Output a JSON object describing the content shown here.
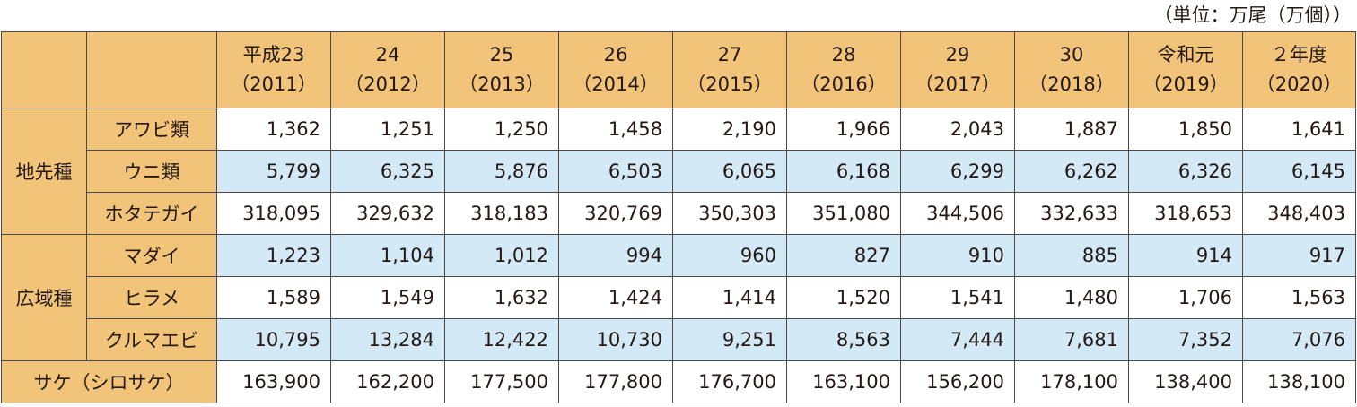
{
  "unit_note": "（単位：万尾（万個））",
  "years": [
    {
      "top": "平成23",
      "bottom": "（2011）"
    },
    {
      "top": "24",
      "bottom": "（2012）"
    },
    {
      "top": "25",
      "bottom": "（2013）"
    },
    {
      "top": "26",
      "bottom": "（2014）"
    },
    {
      "top": "27",
      "bottom": "（2015）"
    },
    {
      "top": "28",
      "bottom": "（2016）"
    },
    {
      "top": "29",
      "bottom": "（2017）"
    },
    {
      "top": "30",
      "bottom": "（2018）"
    },
    {
      "top": "令和元",
      "bottom": "（2019）"
    },
    {
      "top": "２年度",
      "bottom": "（2020）"
    }
  ],
  "groups": [
    {
      "label": "地先種",
      "rows": [
        {
          "name": "アワビ類",
          "values": [
            "1,362",
            "1,251",
            "1,250",
            "1,458",
            "2,190",
            "1,966",
            "2,043",
            "1,887",
            "1,850",
            "1,641"
          ]
        },
        {
          "name": "ウニ類",
          "values": [
            "5,799",
            "6,325",
            "5,876",
            "6,503",
            "6,065",
            "6,168",
            "6,299",
            "6,262",
            "6,326",
            "6,145"
          ]
        },
        {
          "name": "ホタテガイ",
          "values": [
            "318,095",
            "329,632",
            "318,183",
            "320,769",
            "350,303",
            "351,080",
            "344,506",
            "332,633",
            "318,653",
            "348,403"
          ]
        }
      ]
    },
    {
      "label": "広域種",
      "rows": [
        {
          "name": "マダイ",
          "values": [
            "1,223",
            "1,104",
            "1,012",
            "994",
            "960",
            "827",
            "910",
            "885",
            "914",
            "917"
          ]
        },
        {
          "name": "ヒラメ",
          "values": [
            "1,589",
            "1,549",
            "1,632",
            "1,424",
            "1,414",
            "1,520",
            "1,541",
            "1,480",
            "1,706",
            "1,563"
          ]
        },
        {
          "name": "クルマエビ",
          "values": [
            "10,795",
            "13,284",
            "12,422",
            "10,730",
            "9,251",
            "8,563",
            "7,444",
            "7,681",
            "7,352",
            "7,076"
          ]
        }
      ]
    }
  ],
  "salmon": {
    "name": "サケ（シロサケ）",
    "values": [
      "163,900",
      "162,200",
      "177,500",
      "177,800",
      "176,700",
      "163,100",
      "156,200",
      "178,100",
      "138,400",
      "138,100"
    ]
  }
}
